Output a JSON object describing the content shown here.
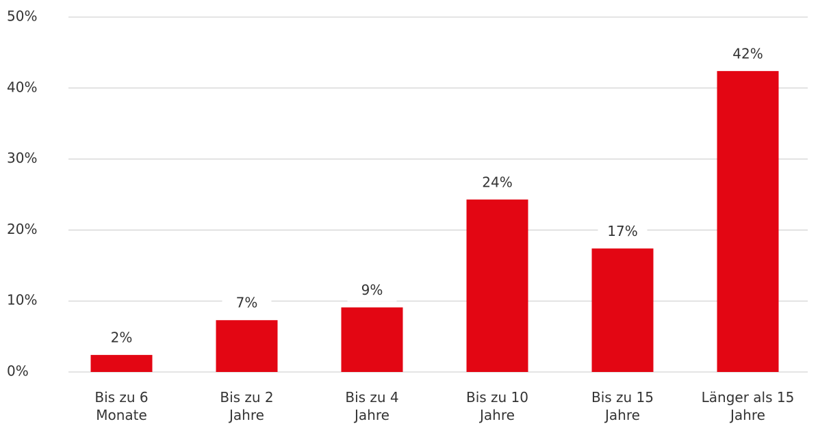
{
  "chart_data": {
    "type": "bar",
    "categories": [
      "Bis zu 6\nMonate",
      "Bis zu 2\nJahre",
      "Bis zu 4\nJahre",
      "Bis zu 10\nJahre",
      "Bis zu 15\nJahre",
      "Länger als 15\nJahre"
    ],
    "values": [
      2.4,
      7.3,
      9.1,
      24.3,
      17.4,
      42.4
    ],
    "value_labels": [
      "2%",
      "7%",
      "9%",
      "24%",
      "17%",
      "42%"
    ],
    "color": "#e30613",
    "ylim": [
      0,
      50
    ],
    "yticks": [
      {
        "value": 0,
        "label": "0%"
      },
      {
        "value": 10,
        "label": "10%"
      },
      {
        "value": 20,
        "label": "20%"
      },
      {
        "value": 30,
        "label": "30%"
      },
      {
        "value": 40,
        "label": "40%"
      },
      {
        "value": 50,
        "label": "50%"
      }
    ],
    "grid": true
  }
}
